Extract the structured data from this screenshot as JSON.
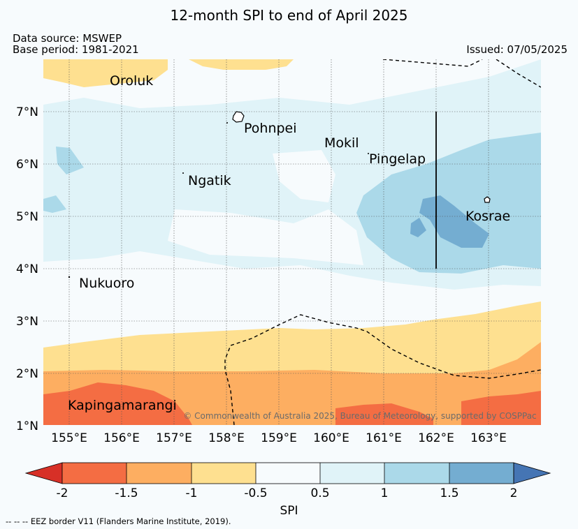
{
  "title": "12-month SPI to end of April 2025",
  "data_source": "Data source: MSWEP",
  "base_period": "Base period: 1981-2021",
  "issued": "Issued: 07/05/2025",
  "copyright": "© Commonwealth of Australia 2025, Bureau of Meteorology, supported by COSPPac",
  "lat_labels": [
    "7°N",
    "6°N",
    "5°N",
    "4°N",
    "3°N",
    "2°N",
    "1°N"
  ],
  "lon_labels": [
    "155°E",
    "156°E",
    "157°E",
    "158°E",
    "159°E",
    "160°E",
    "161°E",
    "162°E",
    "163°E"
  ],
  "islands": {
    "oroluk": "Oroluk",
    "pohnpei": "Pohnpei",
    "mokil": "Mokil",
    "pingelap": "Pingelap",
    "ngatik": "Ngatik",
    "kosrae": "Kosrae",
    "nukuoro": "Nukuoro",
    "kapingamarangi": "Kapingamarangi"
  },
  "colorbar": {
    "title": "SPI",
    "ticks": [
      "-2",
      "-1.5",
      "-1",
      "-0.5",
      "0.5",
      "1",
      "1.5",
      "2"
    ],
    "colors": {
      "below_-2": "#d73027",
      "-2_to_-1.5": "#f46d43",
      "-1.5_to_-1": "#fdae61",
      "-1_to_-0.5": "#fee090",
      "-0.5_to_0.5": "#f7fbfd",
      "0.5_to_1": "#e0f3f8",
      "1_to_1.5": "#abd9e9",
      "1.5_to_2": "#74add1",
      "above_2": "#4575b4"
    }
  },
  "footnote": "-- -- -- EEZ border V11 (Flanders Marine Institute, 2019)."
}
